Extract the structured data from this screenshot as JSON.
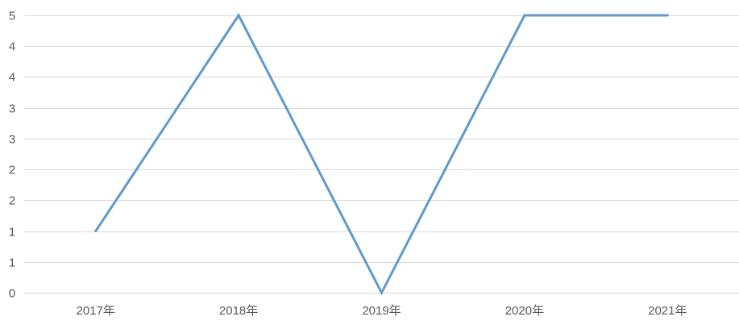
{
  "chart_data": {
    "type": "line",
    "categories": [
      "2017年",
      "2018年",
      "2019年",
      "2020年",
      "2021年"
    ],
    "series": [
      {
        "values": [
          1,
          4.5,
          0,
          4.5,
          4.5
        ],
        "color": "#5b9bd5"
      }
    ],
    "y_tick_values": [
      0,
      0.5,
      1,
      1.5,
      2,
      2.5,
      3,
      3.5,
      4,
      4.5
    ],
    "y_tick_labels": [
      "0",
      "1",
      "1",
      "2",
      "2",
      "3",
      "3",
      "4",
      "4",
      "5"
    ],
    "ylim": [
      0,
      4.5
    ],
    "grid": true,
    "legend": "none",
    "title": "",
    "xlabel": "",
    "ylabel": ""
  }
}
